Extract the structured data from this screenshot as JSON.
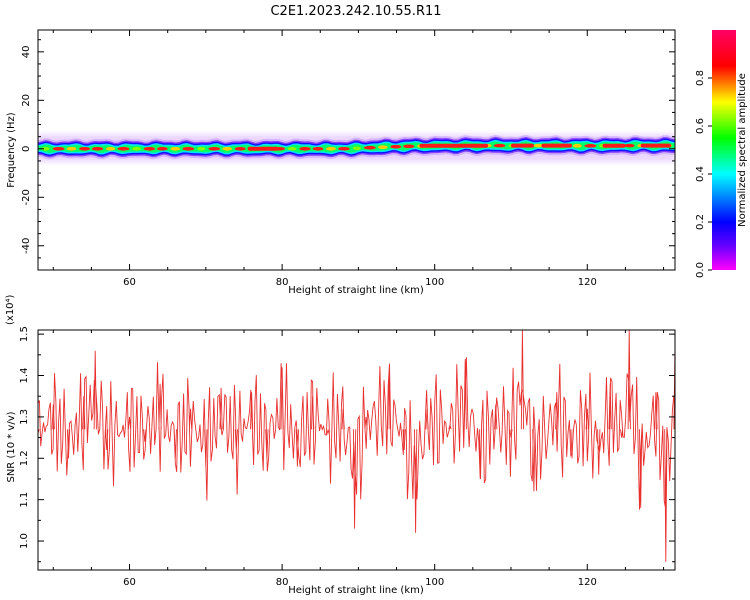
{
  "figure": {
    "title": "C2E1.2023.242.10.55.R11"
  },
  "chart_data": [
    {
      "type": "heatmap",
      "xlabel": "Height of straight line (km)",
      "ylabel": "Frequency (Hz)",
      "xlim": [
        48,
        131.5
      ],
      "ylim": [
        -50,
        49
      ],
      "xticks": [
        "60",
        "80",
        "100",
        "120"
      ],
      "yticks": [
        "-40",
        "-20",
        "0",
        "20",
        "40"
      ],
      "colorbar": {
        "label": "Normalized spectral amplitude",
        "range": [
          0,
          1
        ],
        "ticks": [
          "0.0",
          "0.2",
          "0.4",
          "0.6",
          "0.8"
        ],
        "colormap": [
          "#ff00ff",
          "#6600ff",
          "#0000ff",
          "#00ffff",
          "#00ff00",
          "#ffff00",
          "#ff0000",
          "#ff0066"
        ]
      },
      "ridge": {
        "x": [
          48,
          60,
          70,
          80,
          88,
          92,
          96,
          100,
          105,
          110,
          115,
          120,
          125,
          131.5
        ],
        "freq": [
          0,
          0,
          0,
          0,
          0,
          0.5,
          1.0,
          1.2,
          1.3,
          1.3,
          1.3,
          1.2,
          1.3,
          1.3
        ],
        "peak_amplitude": [
          0.75,
          0.85,
          0.8,
          0.95,
          0.9,
          0.8,
          0.85,
          0.9,
          0.92,
          0.95,
          0.92,
          0.9,
          0.88,
          0.85
        ]
      }
    },
    {
      "type": "line",
      "xlabel": "Height of straight line (km)",
      "ylabel": "SNR (10 * v/v)",
      "multiplier": "(x10⁴)",
      "xlim": [
        48,
        131.5
      ],
      "ylim": [
        0.93,
        1.51
      ],
      "xticks": [
        "60",
        "80",
        "100",
        "120"
      ],
      "yticks": [
        "1.0",
        "1.1",
        "1.2",
        "1.3",
        "1.4",
        "1.5"
      ],
      "series": [
        {
          "color": "#e8312f",
          "x": [
            48,
            50,
            52,
            54,
            55.5,
            57,
            60,
            62,
            64,
            66,
            68,
            70,
            72,
            74,
            76,
            78,
            80,
            82,
            84,
            86,
            88,
            89.5,
            91,
            94,
            96,
            97.5,
            99,
            102,
            104,
            106,
            108,
            110,
            111.5,
            113,
            116,
            118,
            120,
            121.5,
            123,
            124.5,
            125.5,
            127,
            129,
            130.3,
            131.5
          ],
          "y": [
            1.26,
            1.33,
            1.2,
            1.35,
            1.46,
            1.22,
            1.3,
            1.24,
            1.38,
            1.2,
            1.32,
            1.18,
            1.37,
            1.22,
            1.36,
            1.2,
            1.42,
            1.18,
            1.35,
            1.26,
            1.32,
            1.03,
            1.3,
            1.4,
            1.22,
            1.02,
            1.32,
            1.28,
            1.44,
            1.15,
            1.33,
            1.25,
            1.52,
            1.12,
            1.36,
            1.2,
            1.32,
            1.16,
            1.38,
            1.25,
            1.52,
            1.08,
            1.36,
            0.95,
            1.47
          ]
        }
      ]
    }
  ]
}
